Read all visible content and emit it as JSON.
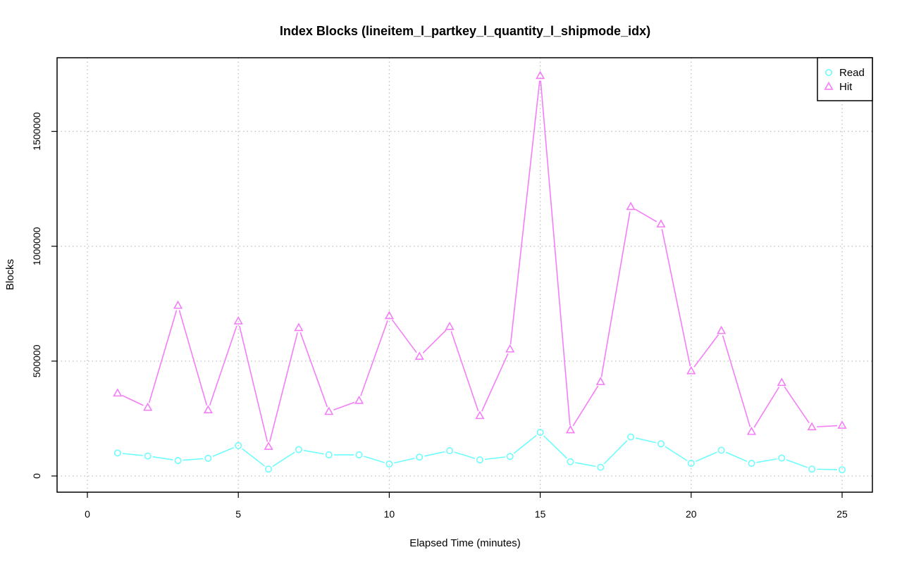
{
  "chart_data": {
    "type": "line",
    "title": "Index Blocks (lineitem_l_partkey_l_quantity_l_shipmode_idx)",
    "xlabel": "Elapsed Time (minutes)",
    "ylabel": "Blocks",
    "xlim": [
      0,
      25
    ],
    "ylim": [
      0,
      1750000
    ],
    "x_ticks": [
      0,
      5,
      10,
      15,
      20,
      25
    ],
    "y_ticks": [
      0,
      500000,
      1000000,
      1500000
    ],
    "grid": true,
    "legend_position": "top-right",
    "x": [
      1,
      2,
      3,
      4,
      5,
      6,
      7,
      8,
      9,
      10,
      11,
      12,
      13,
      14,
      15,
      16,
      17,
      18,
      19,
      20,
      21,
      22,
      23,
      24,
      25
    ],
    "series": [
      {
        "name": "Read",
        "color": "#6ffcfc",
        "marker": "circle",
        "values": [
          100000,
          87000,
          67000,
          77000,
          132000,
          30000,
          115000,
          92000,
          92000,
          52000,
          82000,
          110000,
          70000,
          85000,
          190000,
          62000,
          38000,
          170000,
          140000,
          55000,
          112000,
          55000,
          78000,
          30000,
          27000
        ]
      },
      {
        "name": "Hit",
        "color": "#f37ef7",
        "marker": "triangle",
        "values": [
          360000,
          298000,
          742000,
          287000,
          674000,
          128000,
          645000,
          280000,
          328000,
          697000,
          520000,
          650000,
          262000,
          552000,
          1742000,
          200000,
          410000,
          1172000,
          1096000,
          457000,
          632000,
          193000,
          406000,
          213000,
          220000
        ]
      }
    ]
  }
}
